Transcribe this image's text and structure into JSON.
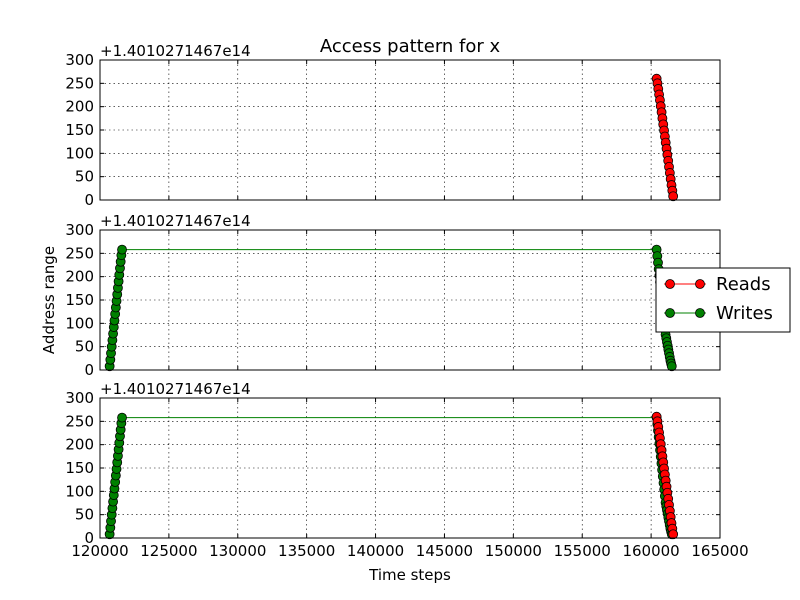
{
  "chart_data": {
    "type": "scatter",
    "title": "Access pattern for x",
    "xlabel": "Time steps",
    "ylabel": "Address range",
    "y_offset_text": "+1.4010271467e14",
    "xlim": [
      120000,
      165000
    ],
    "ylim": [
      0,
      300
    ],
    "x_ticks": [
      "120000",
      "125000",
      "130000",
      "135000",
      "140000",
      "145000",
      "150000",
      "155000",
      "160000",
      "165000"
    ],
    "y_ticks": [
      "0",
      "50",
      "100",
      "150",
      "200",
      "250",
      "300"
    ],
    "grid": true,
    "legend_position": "right, outside",
    "legend": [
      {
        "label": "Reads",
        "color": "#ff0000"
      },
      {
        "label": "Writes",
        "color": "#008000"
      }
    ],
    "colors": {
      "reads": "#ff0000",
      "writes": "#008000",
      "marker_edge": "#000000"
    },
    "panels": [
      {
        "series": [
          {
            "name": "Reads",
            "x": [
              160400,
              160460,
              160520,
              160580,
              160640,
              160700,
              160760,
              160820,
              160880,
              160940,
              161000,
              161060,
              161120,
              161180,
              161240,
              161300,
              161360,
              161420,
              161480,
              161540,
              161600
            ],
            "y": [
              260,
              250,
              238,
              226,
              214,
              201,
              188,
              175,
              162,
              149,
              136,
              123,
              110,
              97,
              84,
              71,
              58,
              45,
              32,
              20,
              8
            ]
          }
        ]
      },
      {
        "series": [
          {
            "name": "Writes",
            "x": [
              120700,
              120750,
              120800,
              120850,
              120900,
              120950,
              121000,
              121050,
              121100,
              121150,
              121200,
              121250,
              121300,
              121350,
              121400,
              121450,
              121500,
              121550,
              121600,
              160400,
              160450,
              160500,
              160550,
              160600,
              160650,
              160700,
              160750,
              160800,
              160850,
              160900,
              160950,
              161000,
              161050,
              161100,
              161150,
              161200,
              161250,
              161300,
              161350,
              161400,
              161450,
              161500
            ],
            "y": [
              8,
              22,
              36,
              50,
              64,
              78,
              92,
              106,
              120,
              134,
              148,
              162,
              176,
              190,
              204,
              218,
              232,
              246,
              258,
              258,
              244,
              230,
              216,
              202,
              188,
              174,
              160,
              146,
              132,
              118,
              104,
              90,
              76,
              68,
              60,
              52,
              44,
              36,
              28,
              20,
              14,
              8
            ]
          }
        ]
      },
      {
        "series": [
          {
            "name": "Writes",
            "x": [
              120700,
              120750,
              120800,
              120850,
              120900,
              120950,
              121000,
              121050,
              121100,
              121150,
              121200,
              121250,
              121300,
              121350,
              121400,
              121450,
              121500,
              121550,
              121600,
              160400,
              160450,
              160500,
              160550,
              160600,
              160650,
              160700,
              160750,
              160800,
              160850,
              160900,
              160950,
              161000,
              161050,
              161100,
              161150,
              161200,
              161250,
              161300,
              161350,
              161400,
              161450,
              161500
            ],
            "y": [
              8,
              22,
              36,
              50,
              64,
              78,
              92,
              106,
              120,
              134,
              148,
              162,
              176,
              190,
              204,
              218,
              232,
              246,
              258,
              258,
              244,
              230,
              216,
              202,
              188,
              174,
              160,
              146,
              132,
              118,
              104,
              90,
              76,
              68,
              60,
              52,
              44,
              36,
              28,
              20,
              14,
              8
            ]
          },
          {
            "name": "Reads",
            "x": [
              160400,
              160460,
              160520,
              160580,
              160640,
              160700,
              160760,
              160820,
              160880,
              160940,
              161000,
              161060,
              161120,
              161180,
              161240,
              161300,
              161360,
              161420,
              161480,
              161540,
              161600
            ],
            "y": [
              260,
              250,
              238,
              226,
              214,
              201,
              188,
              175,
              162,
              149,
              136,
              123,
              110,
              97,
              84,
              71,
              58,
              45,
              32,
              20,
              8
            ]
          }
        ]
      }
    ]
  }
}
